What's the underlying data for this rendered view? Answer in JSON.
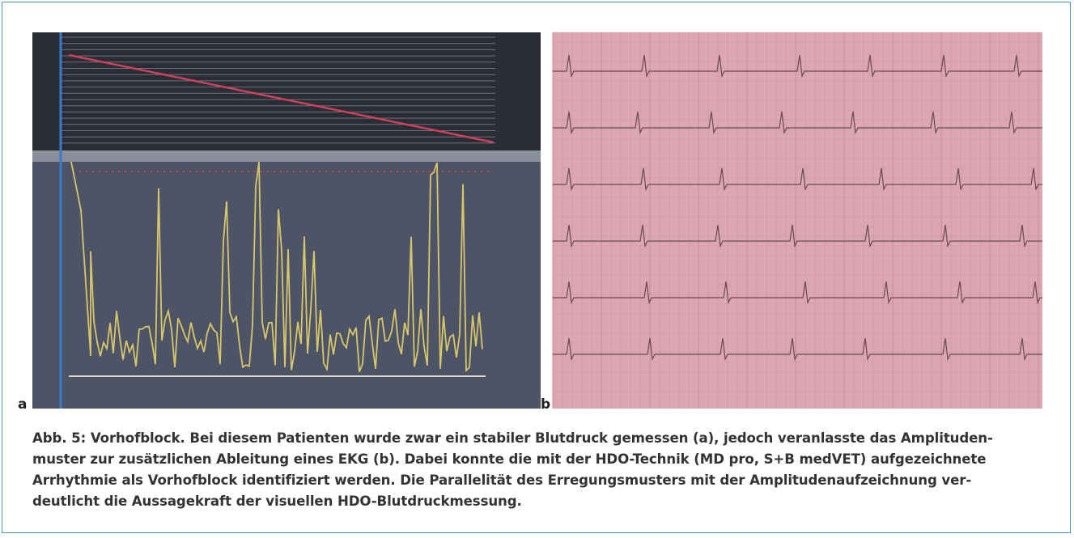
{
  "figure": {
    "panels": [
      {
        "label": "a"
      },
      {
        "label": "b"
      }
    ],
    "caption_lines": [
      "Abb. 5: Vorhofblock. Bei diesem Patienten wurde zwar ein stabiler Blutdruck gemessen (a), jedoch veranlasste das Amplituden-",
      "muster zur zusätzlichen Ableitung eines EKG (b). Dabei konnte die mit der HDO-Technik (MD pro, S+B medVET) aufgezeichnete",
      "Arrhythmie als Vorhofblock identifiziert werden. Die Parallelität des Erregungsmusters mit der Amplitudenaufzeichnung ver-",
      "deutlicht die Aussagekraft der visuellen HDO-Blutdruckmessung."
    ]
  }
}
